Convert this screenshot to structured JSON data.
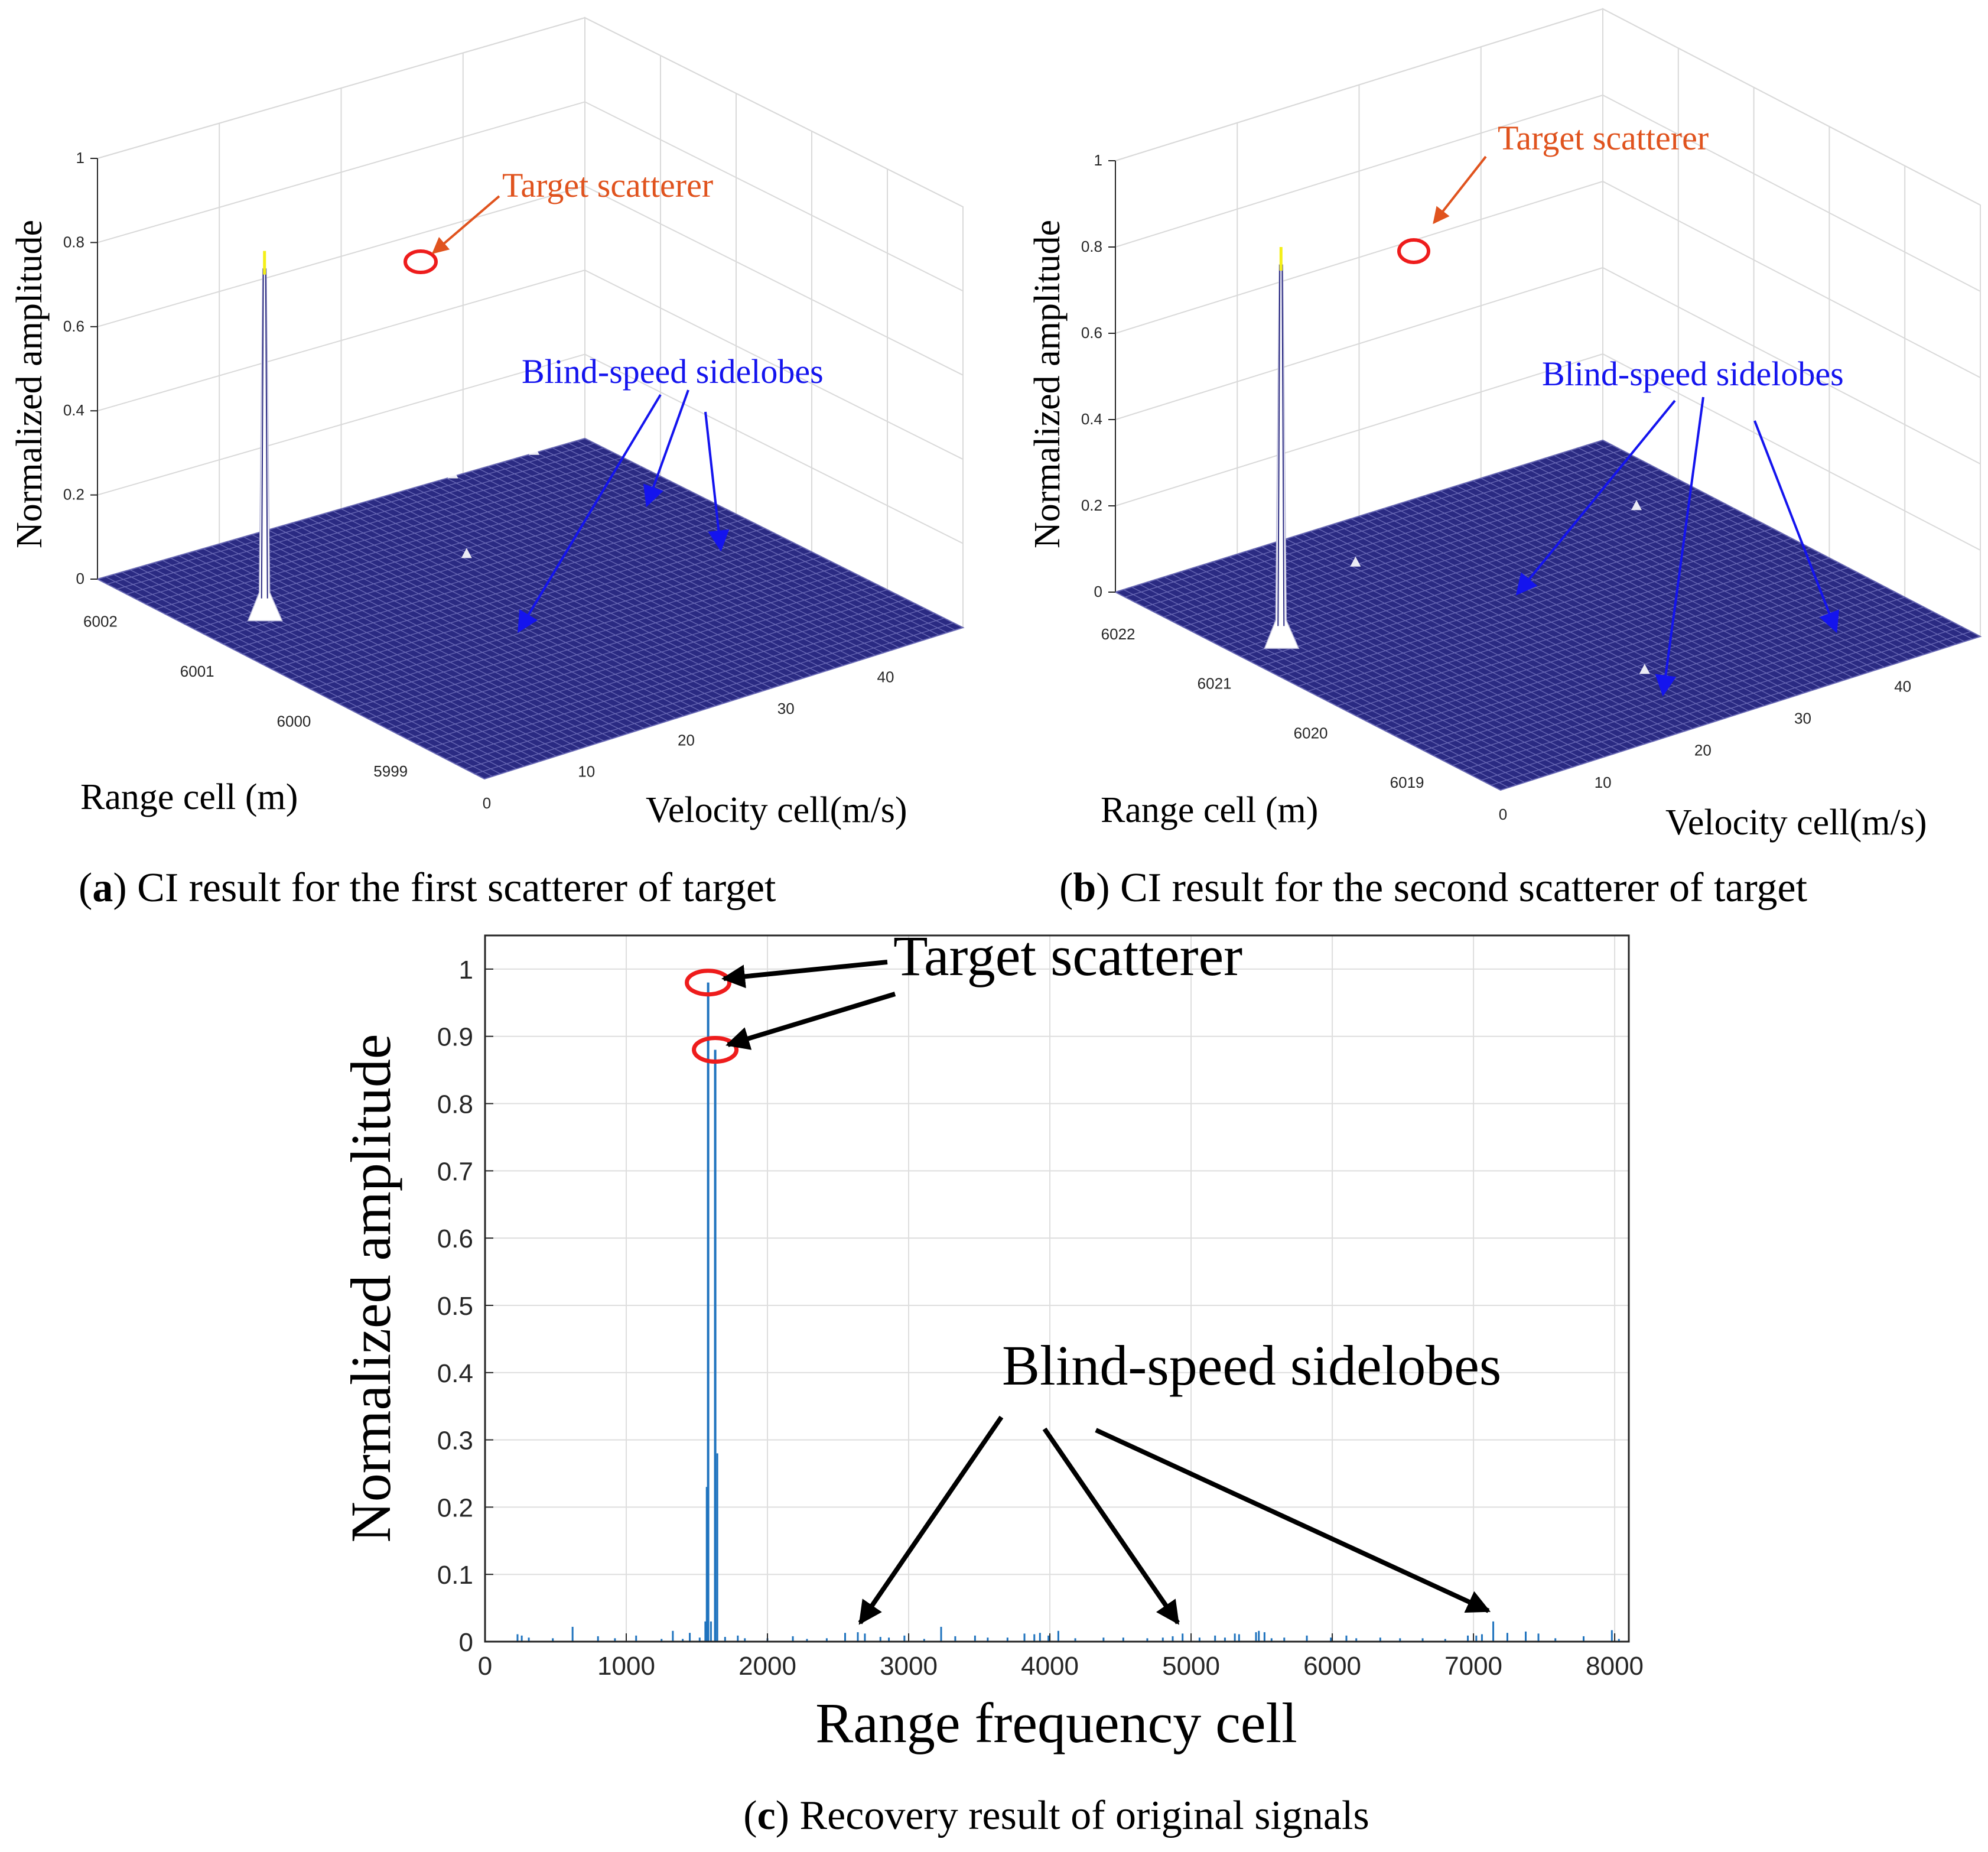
{
  "colors": {
    "surface_fill": "#2a2a82",
    "mesh_line": "#6868b4",
    "peak": "#ffffff",
    "peak_top": "#f4ef18",
    "target_annotation": "#e0531e",
    "sidelobe_annotation": "#1414ee",
    "circle": "#ee1c1c",
    "line_series": "#1f73be",
    "black": "#000000"
  },
  "panel_a": {
    "caption_letter": "a",
    "caption_text": " CI result for the first scatterer of target",
    "target_label": "Target scatterer",
    "sidelobe_label": "Blind-speed sidelobes"
  },
  "panel_b": {
    "caption_letter": "b",
    "caption_text": " CI result for the second scatterer of target",
    "target_label": "Target scatterer",
    "sidelobe_label": "Blind-speed sidelobes"
  },
  "panel_c": {
    "caption_letter": "c",
    "caption_text": " Recovery result of original signals",
    "target_label": "Target scatterer",
    "sidelobe_label": "Blind-speed sidelobes"
  },
  "chart_data": [
    {
      "type": "surface",
      "title": "",
      "xlabel": "Range cell (m)",
      "ylabel": "Velocity cell(m/s)",
      "zlabel": "Normalized amplitude",
      "x_ticks": [
        "6002",
        "6001",
        "6000",
        "5999"
      ],
      "y_ticks": [
        "0",
        "10",
        "20",
        "30",
        "40"
      ],
      "z_ticks": [
        "0",
        "0.2",
        "0.4",
        "0.6",
        "0.8",
        "1"
      ],
      "xlim": [
        5998.5,
        6002.5
      ],
      "ylim": [
        0,
        48
      ],
      "zlim": [
        0,
        1
      ],
      "peak": {
        "range": 6001.4,
        "velocity": 6,
        "amplitude": 0.78
      },
      "sidelobes": [
        {
          "range": 6001.4,
          "velocity": 26,
          "amplitude": 0.01
        },
        {
          "range": 6002.5,
          "velocity": 35,
          "amplitude": 0.02
        },
        {
          "range": 6002.5,
          "velocity": 43,
          "amplitude": 0.01
        }
      ]
    },
    {
      "type": "surface",
      "title": "",
      "xlabel": "Range cell (m)",
      "ylabel": "Velocity cell(m/s)",
      "zlabel": "Normalized amplitude",
      "x_ticks": [
        "6022",
        "6021",
        "6020",
        "6019"
      ],
      "y_ticks": [
        "0",
        "10",
        "20",
        "30",
        "40"
      ],
      "z_ticks": [
        "0",
        "0.2",
        "0.4",
        "0.6",
        "0.8",
        "1"
      ],
      "xlim": [
        6018.5,
        6022.5
      ],
      "ylim": [
        0,
        48
      ],
      "zlim": [
        0,
        1
      ],
      "peak": {
        "range": 6021.2,
        "velocity": 4,
        "amplitude": 0.8
      },
      "sidelobes": [
        {
          "range": 6021.9,
          "velocity": 18,
          "amplitude": 0.01
        },
        {
          "range": 6019.4,
          "velocity": 23,
          "amplitude": 0.01
        },
        {
          "range": 6021.5,
          "velocity": 42,
          "amplitude": 0.01
        }
      ]
    },
    {
      "type": "line",
      "title": "",
      "xlabel": "Range frequency cell",
      "ylabel": "Normalized amplitude",
      "xlim": [
        0,
        8100
      ],
      "ylim": [
        0,
        1.05
      ],
      "x_ticks": [
        "0",
        "1000",
        "2000",
        "3000",
        "4000",
        "5000",
        "6000",
        "7000",
        "8000"
      ],
      "y_ticks": [
        "0",
        "0.1",
        "0.2",
        "0.3",
        "0.4",
        "0.5",
        "0.6",
        "0.7",
        "0.8",
        "0.9",
        "1"
      ],
      "grid": true,
      "targets": [
        {
          "x": 1580,
          "y": 0.98
        },
        {
          "x": 1630,
          "y": 0.88
        }
      ],
      "sidelobe_markers": [
        {
          "x": 2690,
          "y": 0.012
        },
        {
          "x": 4940,
          "y": 0.012
        },
        {
          "x": 7140,
          "y": 0.03
        }
      ],
      "x": [
        230,
        260,
        310,
        480,
        620,
        800,
        920,
        1070,
        1250,
        1330,
        1400,
        1450,
        1520,
        1560,
        1570,
        1580,
        1600,
        1630,
        1645,
        1700,
        1790,
        1840,
        2000,
        2180,
        2280,
        2420,
        2550,
        2640,
        2690,
        2800,
        2860,
        2970,
        3110,
        3230,
        3330,
        3470,
        3560,
        3700,
        3820,
        3890,
        3930,
        3990,
        4060,
        4180,
        4380,
        4520,
        4690,
        4800,
        4870,
        4940,
        5060,
        5170,
        5240,
        5310,
        5340,
        5460,
        5480,
        5520,
        5570,
        5660,
        5820,
        5990,
        6100,
        6170,
        6340,
        6480,
        6640,
        6800,
        6960,
        7020,
        7060,
        7140,
        7240,
        7370,
        7460,
        7580,
        7780,
        7980,
        8030
      ],
      "values": [
        0.011,
        0.009,
        0.006,
        0.005,
        0.022,
        0.008,
        0.005,
        0.009,
        0.004,
        0.016,
        0.004,
        0.013,
        0.006,
        0.03,
        0.23,
        0.98,
        0.03,
        0.88,
        0.28,
        0.007,
        0.009,
        0.005,
        0.005,
        0.008,
        0.004,
        0.005,
        0.013,
        0.014,
        0.012,
        0.007,
        0.006,
        0.009,
        0.004,
        0.022,
        0.008,
        0.009,
        0.006,
        0.006,
        0.012,
        0.011,
        0.013,
        0.009,
        0.016,
        0.005,
        0.006,
        0.006,
        0.005,
        0.006,
        0.008,
        0.012,
        0.006,
        0.009,
        0.006,
        0.012,
        0.011,
        0.014,
        0.016,
        0.014,
        0.005,
        0.006,
        0.009,
        0.006,
        0.009,
        0.005,
        0.006,
        0.005,
        0.005,
        0.004,
        0.009,
        0.009,
        0.011,
        0.03,
        0.013,
        0.015,
        0.012,
        0.005,
        0.008,
        0.017,
        0.004
      ]
    }
  ]
}
